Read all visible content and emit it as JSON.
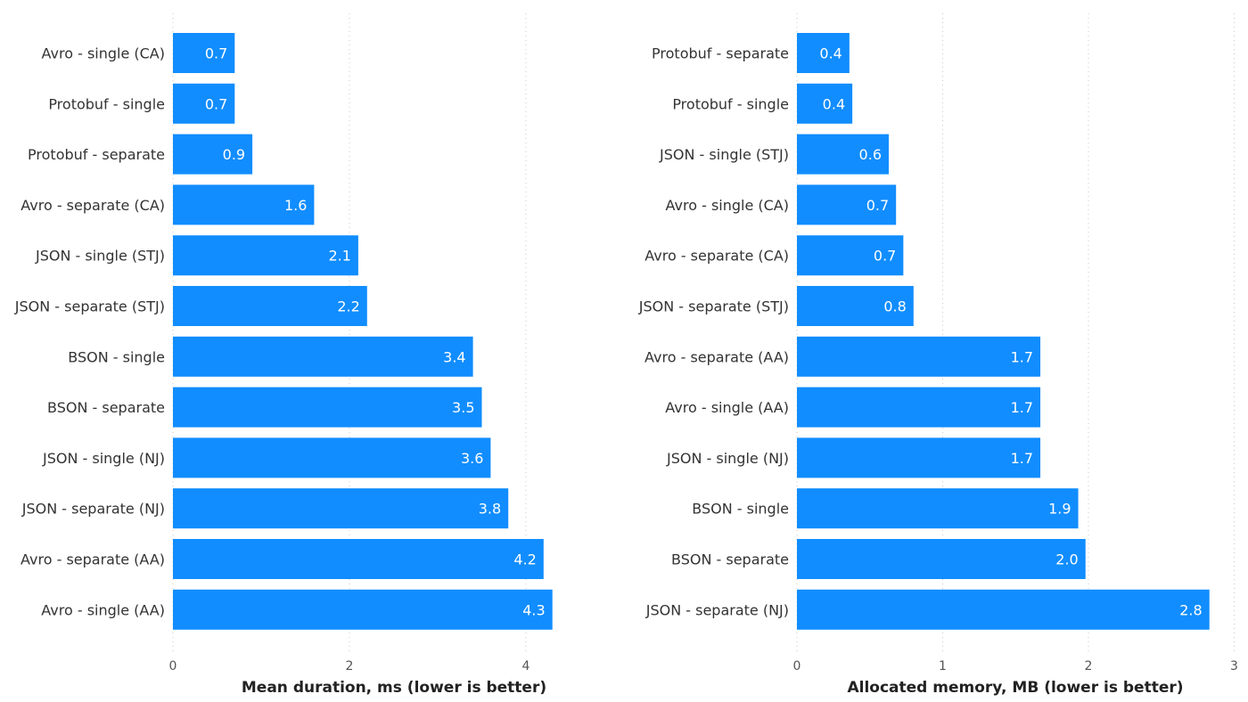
{
  "chart_data": [
    {
      "type": "bar",
      "orientation": "horizontal",
      "title": "",
      "xlabel": "Mean duration, ms (lower is better)",
      "ylabel": "",
      "xlim": [
        0,
        4.4
      ],
      "ticks": [
        "0",
        "2",
        "4"
      ],
      "grid": true,
      "bar_color": "#118dff",
      "categories": [
        "Avro - single (CA)",
        "Protobuf - single",
        "Protobuf - separate",
        "Avro - separate (CA)",
        "JSON - single (STJ)",
        "JSON - separate (STJ)",
        "BSON - single",
        "BSON - separate",
        "JSON - single (NJ)",
        "JSON - separate (NJ)",
        "Avro - separate (AA)",
        "Avro - single (AA)"
      ],
      "values": [
        0.7,
        0.7,
        0.9,
        1.6,
        2.1,
        2.2,
        3.4,
        3.5,
        3.6,
        3.8,
        4.2,
        4.3
      ],
      "data_labels": [
        "0.7",
        "0.7",
        "0.9",
        "1.6",
        "2.1",
        "2.2",
        "3.4",
        "3.5",
        "3.6",
        "3.8",
        "4.2",
        "4.3"
      ]
    },
    {
      "type": "bar",
      "orientation": "horizontal",
      "title": "",
      "xlabel": "Allocated memory, MB (lower is better)",
      "ylabel": "",
      "xlim": [
        0,
        3
      ],
      "ticks": [
        "0",
        "1",
        "2",
        "3"
      ],
      "grid": true,
      "bar_color": "#118dff",
      "categories": [
        "Protobuf - separate",
        "Protobuf - single",
        "JSON - single (STJ)",
        "Avro - single (CA)",
        "Avro - separate (CA)",
        "JSON - separate (STJ)",
        "Avro - separate (AA)",
        "Avro - single (AA)",
        "JSON - single (NJ)",
        "BSON - single",
        "BSON - separate",
        "JSON - separate (NJ)"
      ],
      "values": [
        0.36,
        0.38,
        0.63,
        0.68,
        0.73,
        0.8,
        1.67,
        1.67,
        1.67,
        1.93,
        1.98,
        2.83
      ],
      "data_labels": [
        "0.4",
        "0.4",
        "0.6",
        "0.7",
        "0.7",
        "0.8",
        "1.7",
        "1.7",
        "1.7",
        "1.9",
        "2.0",
        "2.8"
      ]
    }
  ]
}
